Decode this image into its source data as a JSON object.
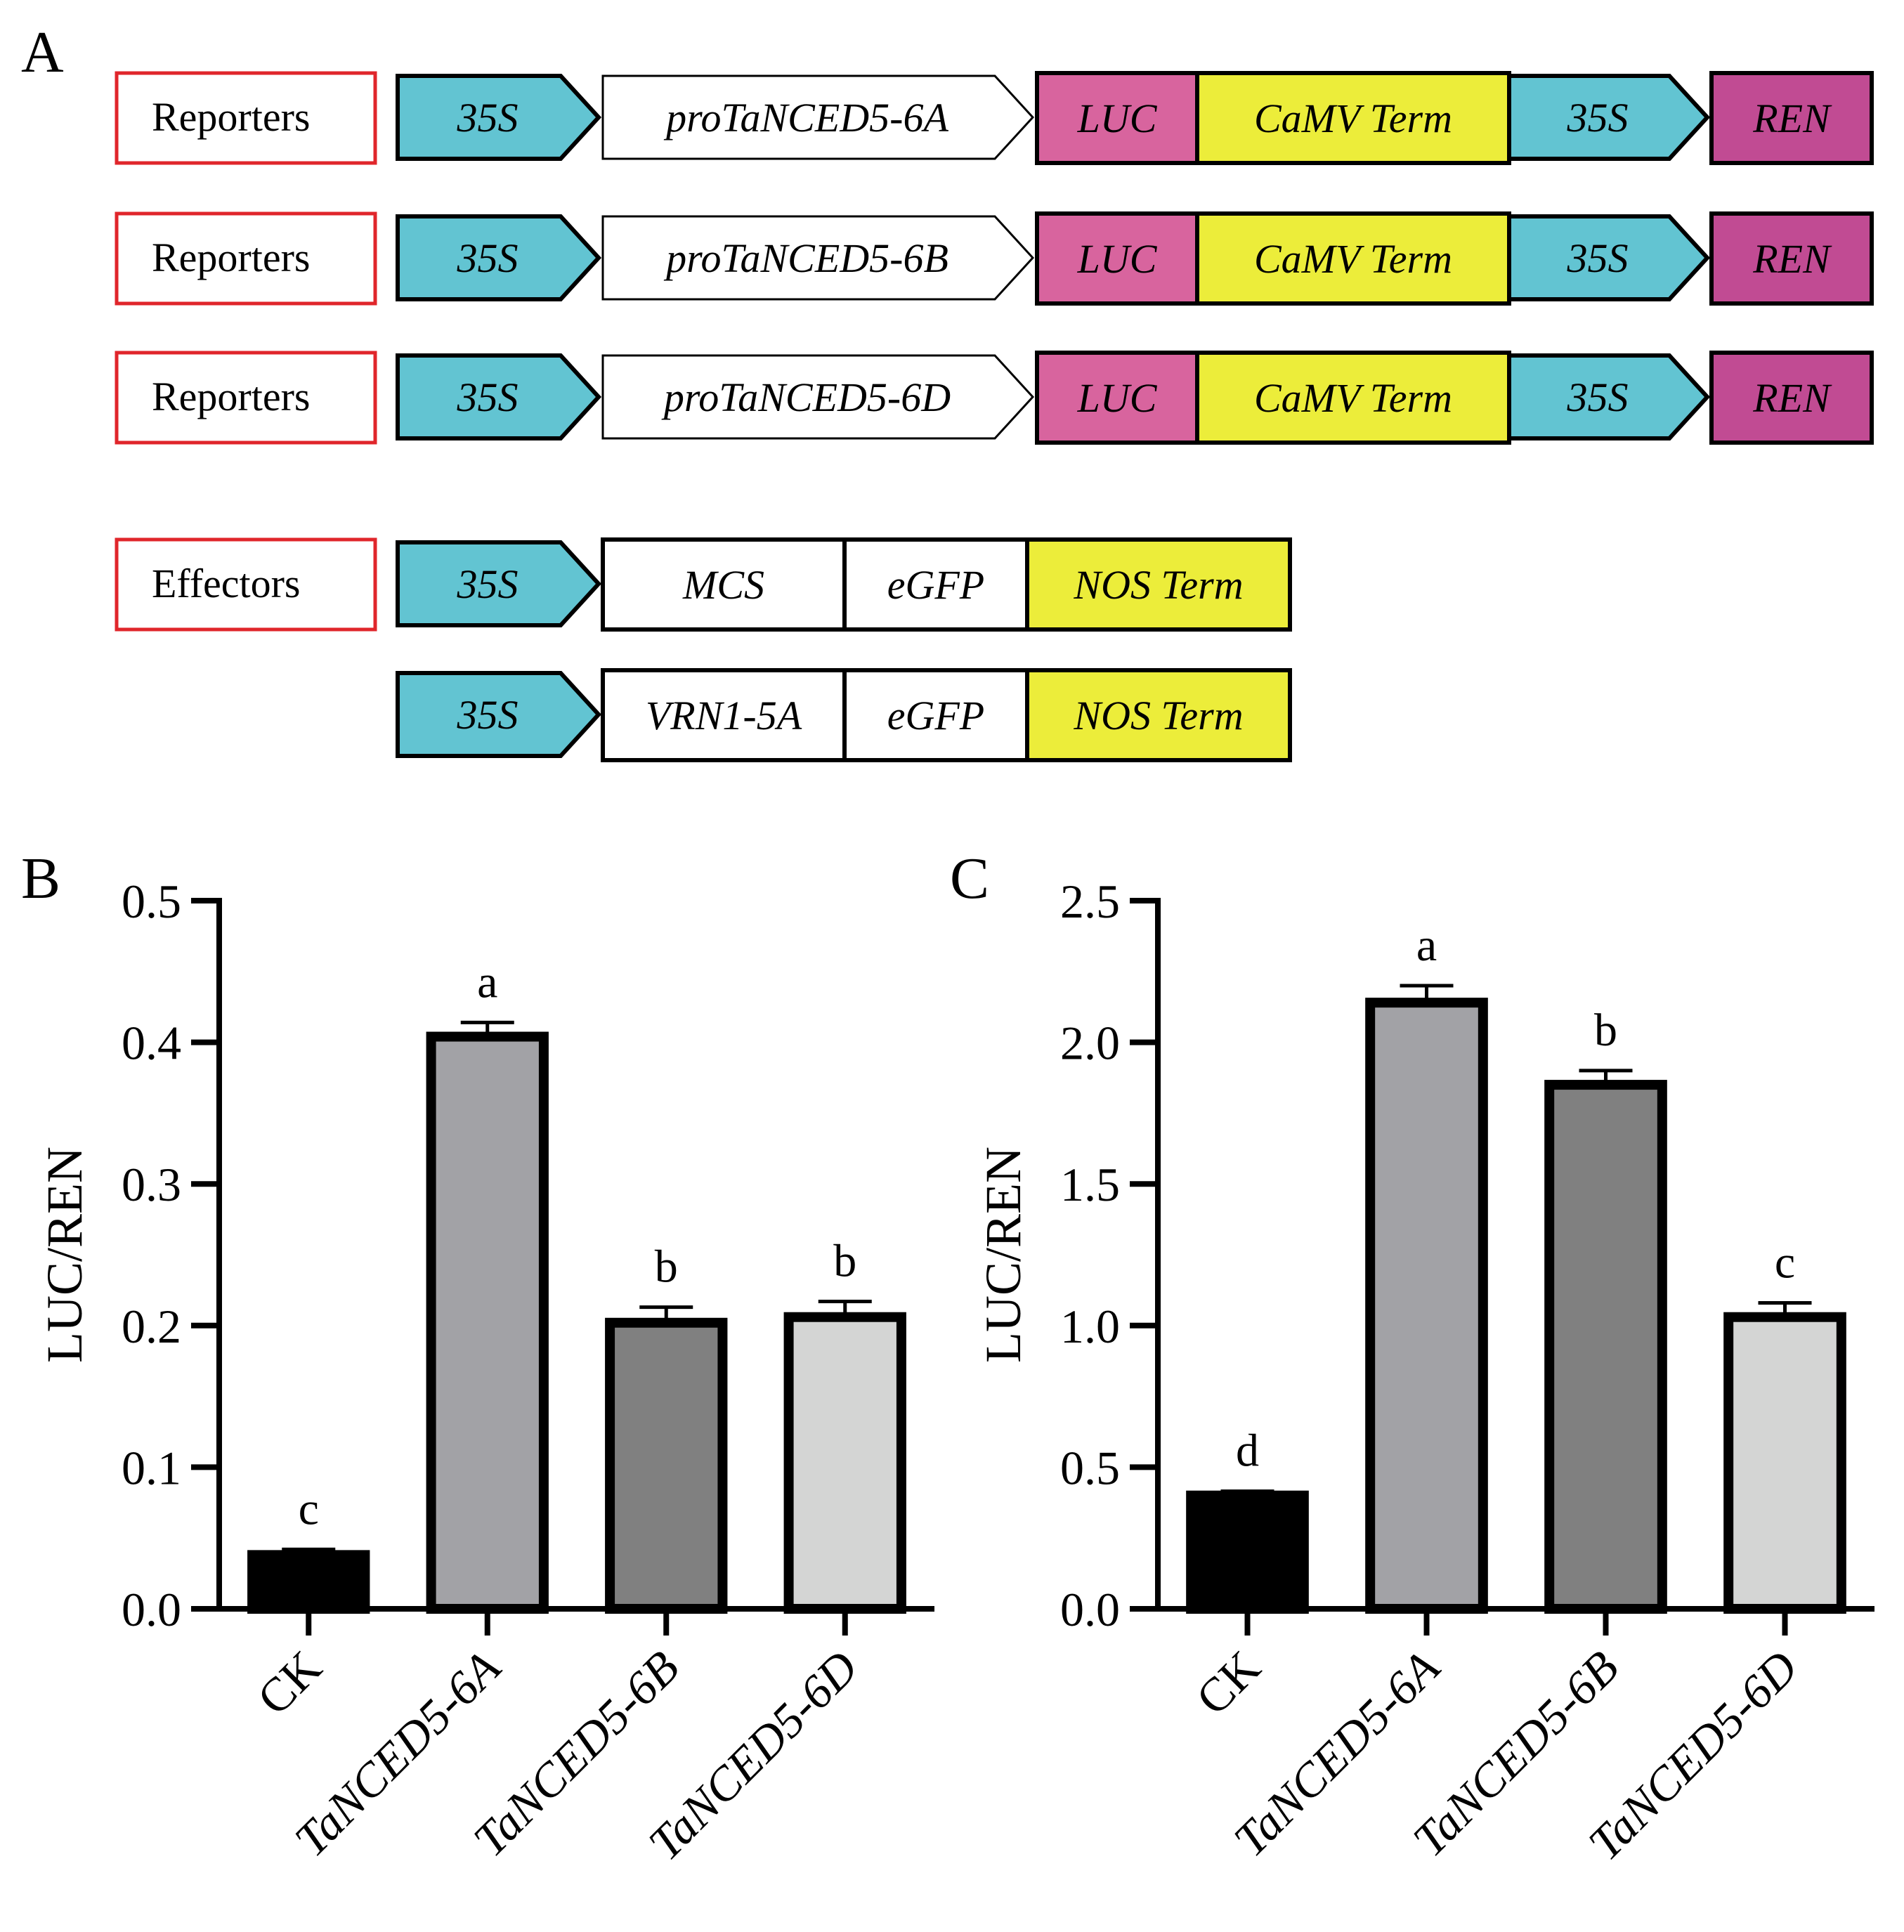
{
  "panel_a": {
    "label": "A",
    "reporters": [
      {
        "row_label": "Reporters",
        "promoter": "35S",
        "insert": "proTaNCED5-6A",
        "reporter": "LUC",
        "terminator": "CaMV Term",
        "promoter2": "35S",
        "control": "REN"
      },
      {
        "row_label": "Reporters",
        "promoter": "35S",
        "insert": "proTaNCED5-6B",
        "reporter": "LUC",
        "terminator": "CaMV Term",
        "promoter2": "35S",
        "control": "REN"
      },
      {
        "row_label": "Reporters",
        "promoter": "35S",
        "insert": "proTaNCED5-6D",
        "reporter": "LUC",
        "terminator": "CaMV Term",
        "promoter2": "35S",
        "control": "REN"
      }
    ],
    "effectors": [
      {
        "row_label": "Effectors",
        "promoter": "35S",
        "insert": "MCS",
        "tag": "eGFP",
        "terminator": "NOS Term"
      },
      {
        "row_label": "",
        "promoter": "35S",
        "insert": "VRN1-5A",
        "tag": "eGFP",
        "terminator": "NOS Term"
      }
    ],
    "colors": {
      "promoter": "#62c4d2",
      "luc": "#d8649e",
      "terminator": "#eced3a",
      "ren": "#c14b93",
      "label_border": "#e0262b",
      "outline": "#000000"
    }
  },
  "chart_data": [
    {
      "panel_label": "B",
      "type": "bar",
      "ylabel": "LUC/REN",
      "ylim": [
        0,
        0.5
      ],
      "yticks": [
        "0.0",
        "0.1",
        "0.2",
        "0.3",
        "0.4",
        "0.5"
      ],
      "categories": [
        "CK",
        "TaNCED5-6A",
        "TaNCED5-6B",
        "TaNCED5-6D"
      ],
      "values": [
        0.038,
        0.404,
        0.202,
        0.206
      ],
      "errors": [
        0.004,
        0.01,
        0.011,
        0.011
      ],
      "significance": [
        "c",
        "a",
        "b",
        "b"
      ],
      "colors": [
        "#000000",
        "#a2a2a6",
        "#808080",
        "#d4d5d4"
      ]
    },
    {
      "panel_label": "C",
      "type": "bar",
      "ylabel": "LUC/REN",
      "ylim": [
        0,
        2.5
      ],
      "yticks": [
        "0.0",
        "0.5",
        "1.0",
        "1.5",
        "2.0",
        "2.5"
      ],
      "categories": [
        "CK",
        "TaNCED5-6A",
        "TaNCED5-6B",
        "TaNCED5-6D"
      ],
      "values": [
        0.4,
        2.14,
        1.85,
        1.03
      ],
      "errors": [
        0.015,
        0.06,
        0.05,
        0.05
      ],
      "significance": [
        "d",
        "a",
        "b",
        "c"
      ],
      "colors": [
        "#000000",
        "#a2a2a6",
        "#808080",
        "#d4d5d4"
      ]
    }
  ]
}
